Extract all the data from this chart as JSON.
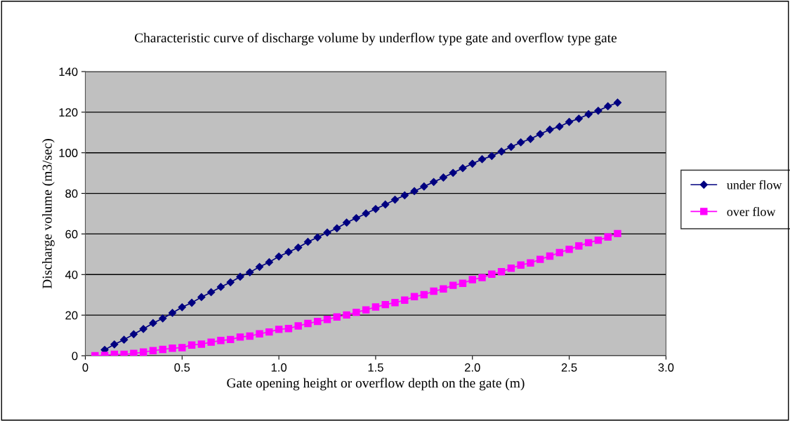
{
  "chart_data": {
    "type": "line",
    "title": "Characteristic curve of discharge volume by underflow type gate and overflow type gate",
    "xlabel": "Gate opening height or overflow depth on the gate (m)",
    "ylabel": "Discharge volume (m3/sec)",
    "xlim": [
      0,
      3.0
    ],
    "xticks": [
      0,
      0.5,
      {
        "value": 1.0,
        "label": "1.0"
      },
      1.5,
      {
        "value": 2.0,
        "label": "2.0"
      },
      2.5,
      {
        "value": 3.0,
        "label": "3.0"
      }
    ],
    "ylim": [
      0,
      140
    ],
    "yticks": [
      0,
      20,
      40,
      60,
      80,
      100,
      120,
      140
    ],
    "grid": "y",
    "legend": "right",
    "series": [
      {
        "name": "under flow",
        "color": "#000080",
        "marker": "diamond",
        "x": [
          0.1,
          0.15,
          0.2,
          0.25,
          0.3,
          0.35,
          0.4,
          0.45,
          0.5,
          0.55,
          0.6,
          0.65,
          0.7,
          0.75,
          0.8,
          0.85,
          0.9,
          0.95,
          1.0,
          1.05,
          1.1,
          1.15,
          1.2,
          1.25,
          1.3,
          1.35,
          1.4,
          1.45,
          1.5,
          1.55,
          1.6,
          1.65,
          1.7,
          1.75,
          1.8,
          1.85,
          1.9,
          1.95,
          2.0,
          2.05,
          2.1,
          2.15,
          2.2,
          2.25,
          2.3,
          2.35,
          2.4,
          2.45,
          2.5,
          2.55,
          2.6,
          2.65,
          2.7,
          2.75
        ],
        "values": [
          2.9,
          5.6,
          7.9,
          10.6,
          13.2,
          16.1,
          18.4,
          21.1,
          23.9,
          26.1,
          28.9,
          31.3,
          33.9,
          36.2,
          38.9,
          41.1,
          43.8,
          46.1,
          48.9,
          51.1,
          53.3,
          56.1,
          58.3,
          60.7,
          62.8,
          65.6,
          67.8,
          70.1,
          72.3,
          74.5,
          76.9,
          79.0,
          81.1,
          83.4,
          85.6,
          87.8,
          90.1,
          92.4,
          94.6,
          96.8,
          98.4,
          100.6,
          102.9,
          105.1,
          106.8,
          109.2,
          111.4,
          112.9,
          115.2,
          116.8,
          119.0,
          120.7,
          122.9,
          124.7
        ]
      },
      {
        "name": "over flow",
        "color": "#ff00ff",
        "marker": "square",
        "x": [
          0.05,
          0.1,
          0.15,
          0.2,
          0.25,
          0.3,
          0.35,
          0.4,
          0.45,
          0.5,
          0.55,
          0.6,
          0.65,
          0.7,
          0.75,
          0.8,
          0.85,
          0.9,
          0.95,
          1.0,
          1.05,
          1.1,
          1.15,
          1.2,
          1.25,
          1.3,
          1.35,
          1.4,
          1.45,
          1.5,
          1.55,
          1.6,
          1.65,
          1.7,
          1.75,
          1.8,
          1.85,
          1.9,
          1.95,
          2.0,
          2.05,
          2.1,
          2.15,
          2.2,
          2.25,
          2.3,
          2.35,
          2.4,
          2.45,
          2.5,
          2.55,
          2.6,
          2.65,
          2.7,
          2.75
        ],
        "values": [
          0,
          0.2,
          0.7,
          0.7,
          1.1,
          1.8,
          2.5,
          3.1,
          3.7,
          4.0,
          5.3,
          5.7,
          6.7,
          7.5,
          8.0,
          9.2,
          9.7,
          10.8,
          11.7,
          13.0,
          13.4,
          14.7,
          15.9,
          16.9,
          17.9,
          19.1,
          20.1,
          21.4,
          22.6,
          24.0,
          25.2,
          26.2,
          27.4,
          29.1,
          30.1,
          31.8,
          32.9,
          34.7,
          35.7,
          37.5,
          38.5,
          40.2,
          41.4,
          43.1,
          44.7,
          45.7,
          47.5,
          49.1,
          50.8,
          52.4,
          54.1,
          55.7,
          56.9,
          58.5,
          60.2
        ]
      }
    ]
  }
}
